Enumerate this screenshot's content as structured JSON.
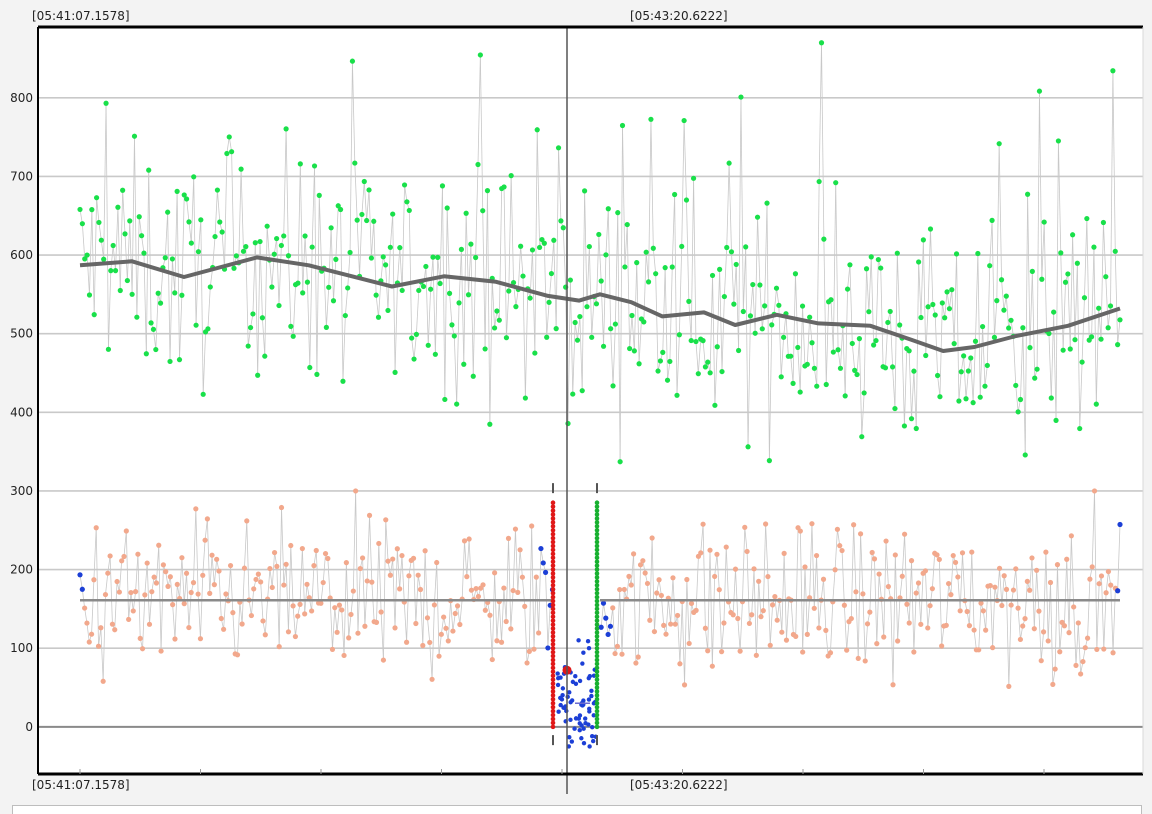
{
  "timestamps": {
    "top_left": "[05:41:07.1578]",
    "top_mid": "[05:43:20.6222]",
    "bottom_left": "[05:41:07.1578]",
    "bottom_mid": "[05:43:20.6222]"
  },
  "colors": {
    "upper_points": "#19e04a",
    "lower_points": "#f2a88c",
    "cursor_points": "#1c3fd6",
    "left_marker": "#e01818",
    "right_marker": "#18b030",
    "trend_line": "#666666",
    "connector_line": "#c8c8c8"
  },
  "chart_data": {
    "type": "scatter",
    "x_axis": {
      "type": "time",
      "start": "05:41:07.1578",
      "cursor": "05:43:20.6222"
    },
    "y_axis": {
      "range": [
        -60,
        890
      ],
      "ticks": [
        0,
        100,
        200,
        300,
        400,
        500,
        600,
        700,
        800
      ]
    },
    "grid": true,
    "series": [
      {
        "role": "upper",
        "point_count": 440,
        "trend": [
          {
            "x": 0.0,
            "y": 587
          },
          {
            "x": 0.05,
            "y": 592
          },
          {
            "x": 0.1,
            "y": 572
          },
          {
            "x": 0.17,
            "y": 597
          },
          {
            "x": 0.22,
            "y": 587
          },
          {
            "x": 0.3,
            "y": 560
          },
          {
            "x": 0.35,
            "y": 573
          },
          {
            "x": 0.4,
            "y": 566
          },
          {
            "x": 0.45,
            "y": 548
          },
          {
            "x": 0.48,
            "y": 542
          },
          {
            "x": 0.5,
            "y": 550
          },
          {
            "x": 0.53,
            "y": 540
          },
          {
            "x": 0.56,
            "y": 522
          },
          {
            "x": 0.6,
            "y": 527
          },
          {
            "x": 0.63,
            "y": 511
          },
          {
            "x": 0.67,
            "y": 524
          },
          {
            "x": 0.71,
            "y": 513
          },
          {
            "x": 0.76,
            "y": 510
          },
          {
            "x": 0.8,
            "y": 492
          },
          {
            "x": 0.83,
            "y": 478
          },
          {
            "x": 0.86,
            "y": 483
          },
          {
            "x": 0.9,
            "y": 497
          },
          {
            "x": 0.95,
            "y": 510
          },
          {
            "x": 1.0,
            "y": 532
          }
        ]
      },
      {
        "role": "lower",
        "point_count": 450,
        "mean": 161
      },
      {
        "role": "cursor-region",
        "left_marker_range": [
          0,
          285
        ],
        "right_marker_range": [
          0,
          285
        ],
        "highlight_point": {
          "y": 72
        }
      }
    ]
  }
}
